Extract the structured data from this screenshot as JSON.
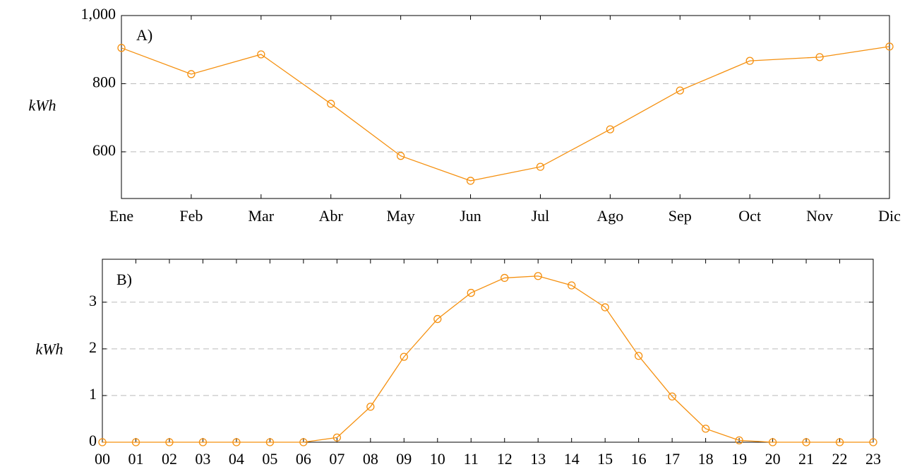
{
  "chart_data": [
    {
      "type": "line",
      "annotation": "A)",
      "ylabel": "kWh",
      "categories": [
        "Ene",
        "Feb",
        "Mar",
        "Abr",
        "May",
        "Jun",
        "Jul",
        "Ago",
        "Sep",
        "Oct",
        "Nov",
        "Dic"
      ],
      "series": [
        {
          "color": "#f5900f",
          "values": [
            905,
            828,
            886,
            741,
            588,
            515,
            556,
            666,
            780,
            867,
            878,
            909
          ]
        }
      ],
      "ylim": [
        463,
        1000
      ],
      "yticks": [
        600,
        800,
        {
          "value": 1000,
          "label": "1,000"
        }
      ],
      "grid": true,
      "marker": "circle"
    },
    {
      "type": "line",
      "annotation": "B)",
      "ylabel": "kWh",
      "categories": [
        "00",
        "01",
        "02",
        "03",
        "04",
        "05",
        "06",
        "07",
        "08",
        "09",
        "10",
        "11",
        "12",
        "13",
        "14",
        "15",
        "16",
        "17",
        "18",
        "19",
        "20",
        "21",
        "22",
        "23"
      ],
      "series": [
        {
          "color": "#f5900f",
          "values": [
            0,
            0,
            0,
            0,
            0,
            0,
            0,
            0.1,
            0.76,
            1.83,
            2.64,
            3.2,
            3.52,
            3.56,
            3.36,
            2.89,
            1.85,
            0.98,
            0.29,
            0.04,
            0,
            0,
            0,
            0
          ]
        }
      ],
      "ylim": [
        0,
        3.92
      ],
      "yticks": [
        0,
        1,
        2,
        3
      ],
      "grid": true,
      "marker": "circle"
    }
  ]
}
